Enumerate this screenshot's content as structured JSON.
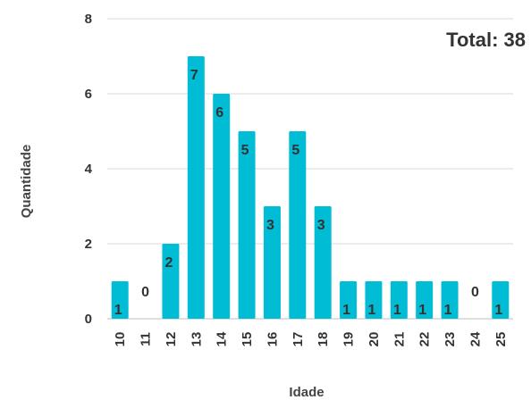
{
  "chart_data": {
    "type": "bar",
    "categories": [
      "10",
      "11",
      "12",
      "13",
      "14",
      "15",
      "16",
      "17",
      "18",
      "19",
      "20",
      "21",
      "22",
      "23",
      "24",
      "25"
    ],
    "values": [
      1,
      0,
      2,
      7,
      6,
      5,
      3,
      5,
      3,
      1,
      1,
      1,
      1,
      1,
      0,
      1
    ],
    "xlabel": "Idade",
    "ylabel": "Quantidade",
    "ylim": [
      0,
      8
    ],
    "yticks": [
      0,
      2,
      4,
      6,
      8
    ],
    "grid": true,
    "legend": "none",
    "annotation": "Total: 38",
    "colors": {
      "bar": "#00BCD4",
      "grid": "#d9d9d9",
      "text": "#333333"
    }
  }
}
